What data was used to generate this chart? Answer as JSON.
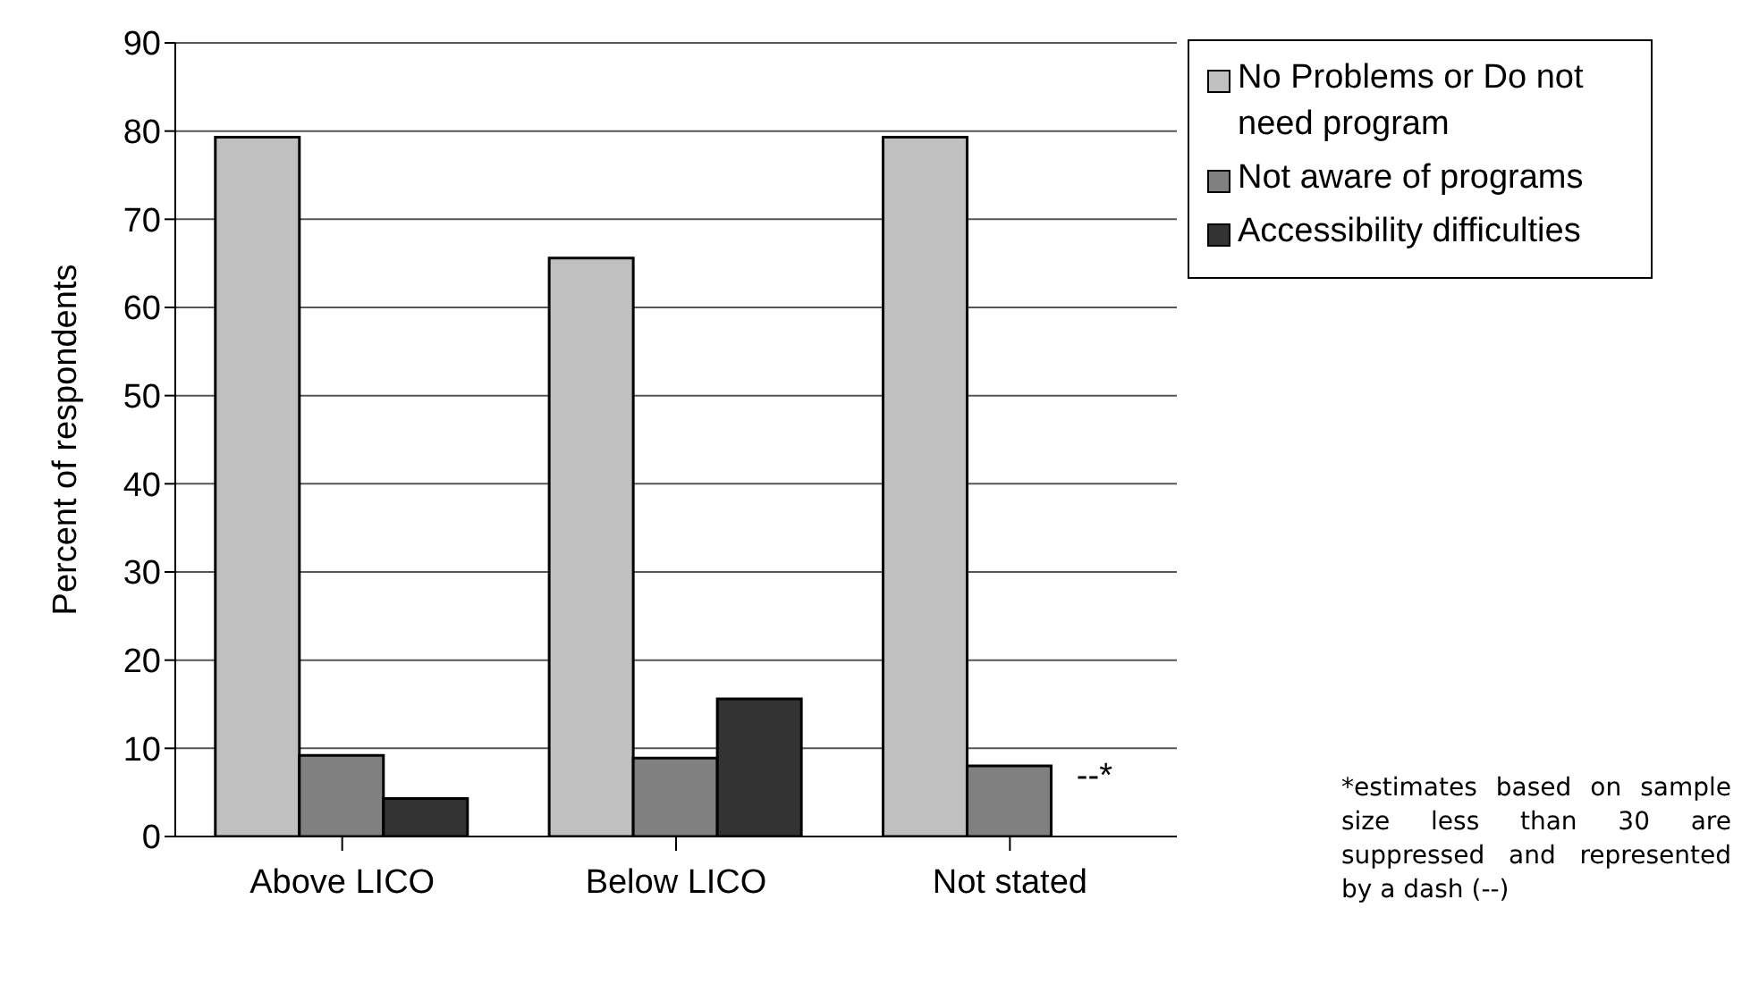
{
  "chart_data": {
    "type": "bar",
    "ylabel": "Percent of respondents",
    "categories": [
      "Above LICO",
      "Below LICO",
      "Not stated"
    ],
    "series": [
      {
        "name": "No Problems or Do not need program",
        "color": "#c0c0c0",
        "values": [
          79.3,
          65.6,
          79.3
        ]
      },
      {
        "name": "Not aware of programs",
        "color": "#808080",
        "values": [
          9.2,
          8.9,
          8.0
        ]
      },
      {
        "name": "Accessibility difficulties",
        "color": "#333333",
        "values": [
          4.3,
          15.6,
          null
        ],
        "value_labels": [
          null,
          null,
          "--*"
        ]
      }
    ],
    "ylim": [
      0,
      90
    ],
    "yticks": [
      0,
      10,
      20,
      30,
      40,
      50,
      60,
      70,
      80,
      90
    ],
    "grid": "y",
    "legend": "top right",
    "annotations": [
      "*estimates based on sample size less than 30 are suppressed and represented by a dash (--)"
    ]
  }
}
